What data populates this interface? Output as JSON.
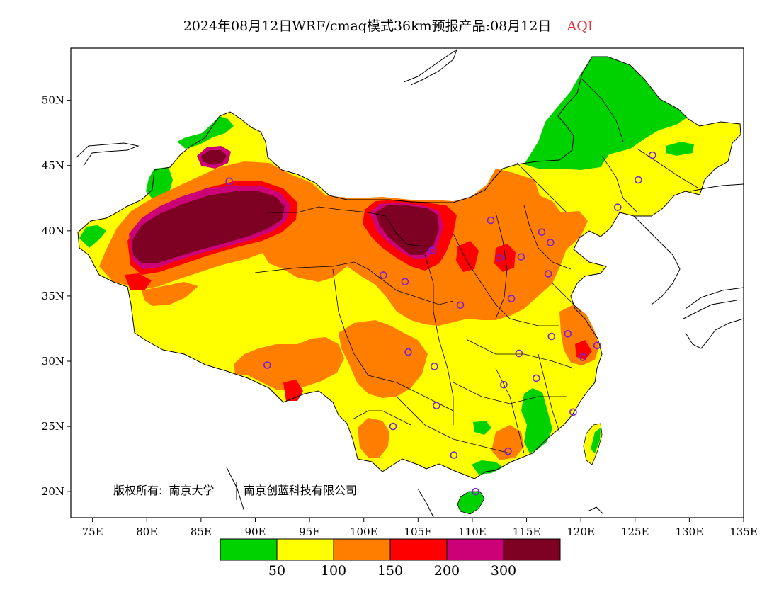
{
  "title": {
    "main": "2024年08月12日WRF/cmaq模式36km预报产品:08月12日",
    "variable": "AQI",
    "variable_color": "#e8303c"
  },
  "copyright": {
    "prefix": "版权所有:",
    "org1": "南京大学",
    "org2": "南京创蓝科技有限公司"
  },
  "map": {
    "lon_range": [
      73,
      135
    ],
    "lat_range": [
      18,
      54
    ],
    "lon_ticks": [
      "75E",
      "80E",
      "85E",
      "90E",
      "95E",
      "100E",
      "105E",
      "110E",
      "115E",
      "120E",
      "125E",
      "130E",
      "135E"
    ],
    "lat_ticks": [
      "20N",
      "25N",
      "30N",
      "35N",
      "40N",
      "45N",
      "50N"
    ],
    "field": "AQI forecast (filled contours)",
    "station_marker_color": "#7a1fd6",
    "stations": [
      {
        "lon": 87.6,
        "lat": 43.8
      },
      {
        "lon": 126.6,
        "lat": 45.8
      },
      {
        "lon": 125.3,
        "lat": 43.9
      },
      {
        "lon": 123.4,
        "lat": 41.8
      },
      {
        "lon": 111.7,
        "lat": 40.8
      },
      {
        "lon": 116.4,
        "lat": 39.9
      },
      {
        "lon": 117.2,
        "lat": 39.1
      },
      {
        "lon": 114.5,
        "lat": 38.0
      },
      {
        "lon": 112.5,
        "lat": 37.9
      },
      {
        "lon": 106.3,
        "lat": 38.5
      },
      {
        "lon": 101.8,
        "lat": 36.6
      },
      {
        "lon": 103.8,
        "lat": 36.1
      },
      {
        "lon": 117.0,
        "lat": 36.7
      },
      {
        "lon": 113.6,
        "lat": 34.8
      },
      {
        "lon": 108.9,
        "lat": 34.3
      },
      {
        "lon": 117.3,
        "lat": 31.9
      },
      {
        "lon": 118.8,
        "lat": 32.1
      },
      {
        "lon": 121.5,
        "lat": 31.2
      },
      {
        "lon": 120.2,
        "lat": 30.3
      },
      {
        "lon": 114.3,
        "lat": 30.6
      },
      {
        "lon": 104.1,
        "lat": 30.7
      },
      {
        "lon": 106.5,
        "lat": 29.6
      },
      {
        "lon": 91.1,
        "lat": 29.7
      },
      {
        "lon": 115.9,
        "lat": 28.7
      },
      {
        "lon": 112.9,
        "lat": 28.2
      },
      {
        "lon": 106.7,
        "lat": 26.6
      },
      {
        "lon": 119.3,
        "lat": 26.1
      },
      {
        "lon": 102.7,
        "lat": 25.0
      },
      {
        "lon": 113.3,
        "lat": 23.1
      },
      {
        "lon": 108.3,
        "lat": 22.8
      },
      {
        "lon": 110.3,
        "lat": 20.0
      }
    ]
  },
  "legend": {
    "colors": [
      "#00d200",
      "#ffff00",
      "#ff7e00",
      "#ff0000",
      "#cc0077",
      "#7e0023"
    ],
    "labels": [
      "50",
      "100",
      "150",
      "200",
      "300"
    ]
  }
}
